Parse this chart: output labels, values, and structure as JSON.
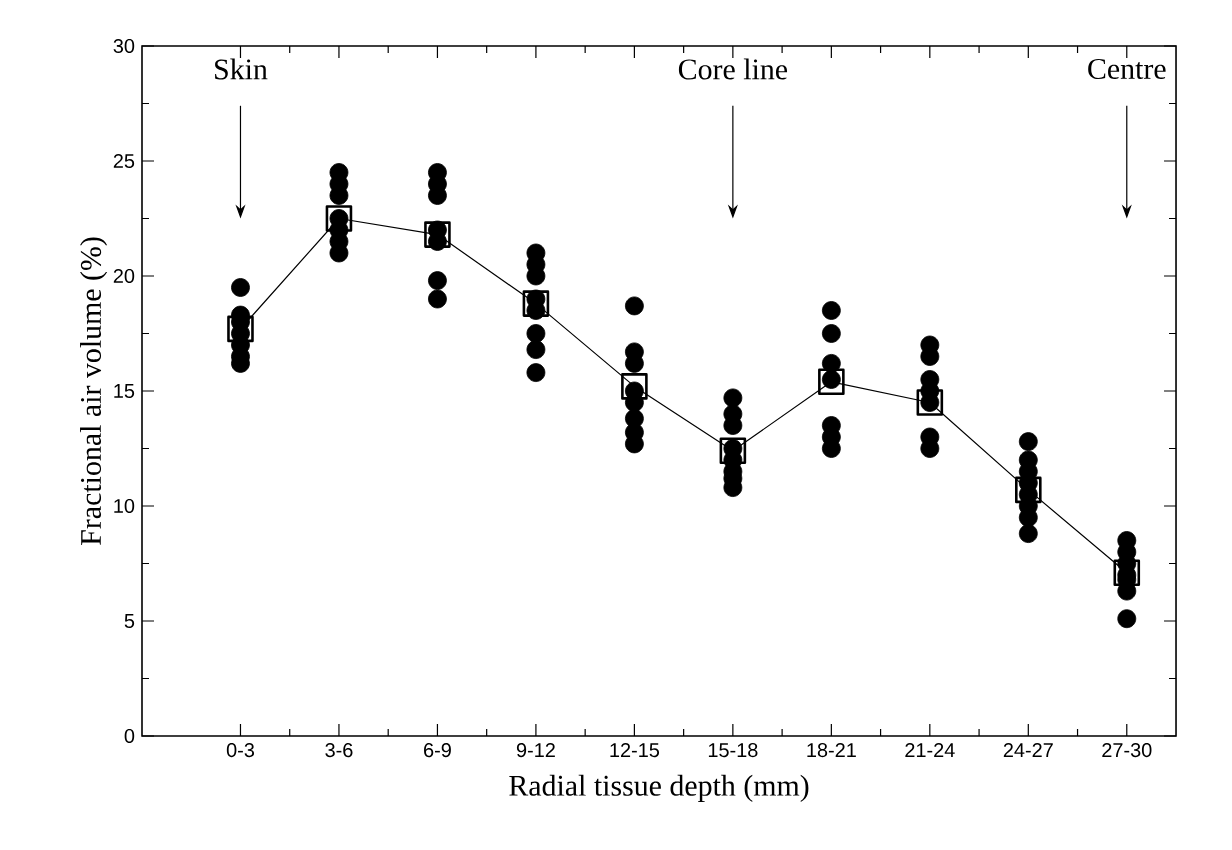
{
  "chart_data": {
    "type": "scatter",
    "xlabel": "Radial tissue depth (mm)",
    "ylabel": "Fractional air volume (%)",
    "categories": [
      "0-3",
      "3-6",
      "6-9",
      "9-12",
      "12-15",
      "15-18",
      "18-21",
      "21-24",
      "24-27",
      "27-30"
    ],
    "ylim": [
      0,
      30
    ],
    "yticks": [
      0,
      5,
      10,
      15,
      20,
      25,
      30
    ],
    "annotations": [
      "Skin",
      "Core line",
      "Centre"
    ],
    "series": [
      {
        "marker": "circle",
        "color": "#000000",
        "x": [
          "0-3",
          "0-3",
          "0-3",
          "0-3",
          "0-3",
          "0-3",
          "0-3",
          "3-6",
          "3-6",
          "3-6",
          "3-6",
          "3-6",
          "3-6",
          "3-6",
          "6-9",
          "6-9",
          "6-9",
          "6-9",
          "6-9",
          "6-9",
          "6-9",
          "9-12",
          "9-12",
          "9-12",
          "9-12",
          "9-12",
          "9-12",
          "9-12",
          "9-12",
          "12-15",
          "12-15",
          "12-15",
          "12-15",
          "12-15",
          "12-15",
          "12-15",
          "12-15",
          "15-18",
          "15-18",
          "15-18",
          "15-18",
          "15-18",
          "15-18",
          "15-18",
          "15-18",
          "18-21",
          "18-21",
          "18-21",
          "18-21",
          "18-21",
          "18-21",
          "18-21",
          "21-24",
          "21-24",
          "21-24",
          "21-24",
          "21-24",
          "21-24",
          "21-24",
          "24-27",
          "24-27",
          "24-27",
          "24-27",
          "24-27",
          "24-27",
          "24-27",
          "24-27",
          "27-30",
          "27-30",
          "27-30",
          "27-30",
          "27-30",
          "27-30",
          "27-30"
        ],
        "values": [
          19.5,
          18.3,
          18,
          17.5,
          17,
          16.5,
          16.2,
          24.5,
          24,
          23.5,
          22.5,
          22,
          21.5,
          21,
          24.5,
          24,
          23.5,
          22,
          21.5,
          19.8,
          19,
          21,
          20.5,
          20,
          19,
          18.5,
          17.5,
          16.8,
          15.8,
          18.7,
          16.7,
          16.2,
          15,
          14.5,
          13.8,
          13.2,
          12.7,
          14.7,
          14,
          13.5,
          12.5,
          12,
          11.5,
          11.2,
          10.8,
          18.5,
          17.5,
          16.2,
          15.5,
          13.5,
          13,
          12.5,
          17,
          16.5,
          15.5,
          15,
          14.5,
          13,
          12.5,
          12.8,
          12,
          11.5,
          11,
          10.5,
          10,
          9.5,
          8.8,
          8.5,
          8,
          7.5,
          7,
          6.8,
          6.3,
          5.1
        ]
      },
      {
        "type": "line",
        "marker": "square",
        "color": "#000000",
        "values": [
          17.7,
          22.5,
          21.8,
          18.8,
          15.2,
          12.4,
          15.4,
          14.5,
          10.7,
          7.1
        ]
      }
    ]
  }
}
